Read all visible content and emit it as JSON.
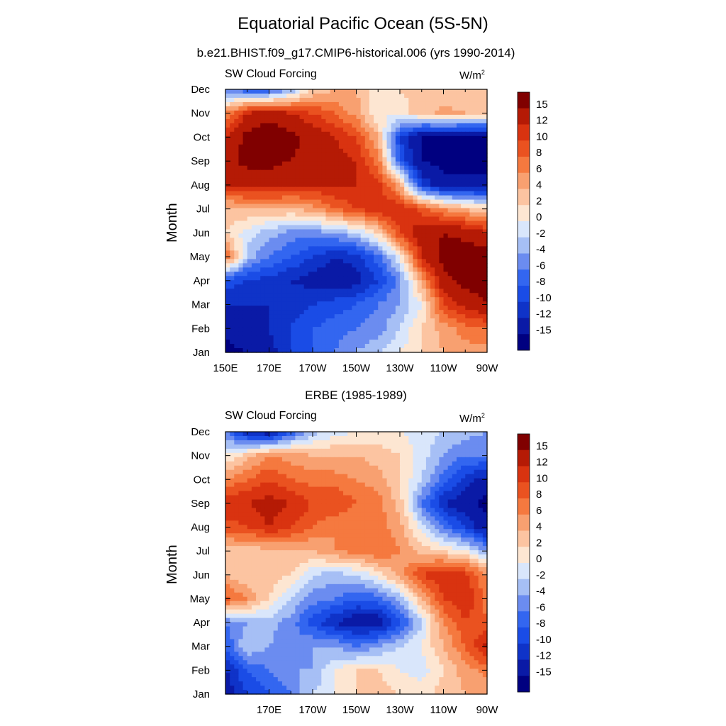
{
  "title": "Equatorial Pacific Ocean (5S-5N)",
  "chart_data": [
    {
      "type": "heatmap",
      "panel_title": "b.e21.BHIST.f09_g17.CMIP6-historical.006 (yrs 1990-2014)",
      "left_label": "SW Cloud Forcing",
      "units_base": "W/m",
      "units_exp": "2",
      "ylabel": "Month",
      "xticks": [
        "150E",
        "170E",
        "170W",
        "150W",
        "130W",
        "110W",
        "90W"
      ],
      "yticks": [
        "Jan",
        "Feb",
        "Mar",
        "Apr",
        "May",
        "Jun",
        "Jul",
        "Aug",
        "Sep",
        "Oct",
        "Nov",
        "Dec"
      ],
      "xlim": [
        150,
        270
      ],
      "lon_cols": [
        150,
        160,
        170,
        180,
        190,
        200,
        210,
        220,
        230,
        240,
        250,
        260,
        270
      ],
      "z": [
        [
          -16,
          -15,
          -13,
          -10,
          -8,
          -6,
          -4,
          -2,
          0,
          2,
          4,
          5,
          5
        ],
        [
          -14,
          -13,
          -12,
          -10,
          -8,
          -7,
          -6,
          -5,
          -2,
          2,
          5,
          7,
          8
        ],
        [
          -12,
          -12,
          -12,
          -11,
          -10,
          -9,
          -8,
          -6,
          -4,
          0,
          10,
          13,
          15
        ],
        [
          -9,
          -10,
          -11,
          -12,
          -13,
          -14,
          -13,
          -10,
          -5,
          5,
          14,
          16,
          17
        ],
        [
          8,
          -3,
          -6,
          -8,
          -10,
          -12,
          -11,
          -7,
          0,
          12,
          16,
          17,
          17
        ],
        [
          2,
          -1,
          -3,
          -5,
          -5,
          -4,
          -2,
          2,
          10,
          14,
          15,
          14,
          12
        ],
        [
          3,
          4,
          4,
          4,
          5,
          8,
          10,
          12,
          12,
          9,
          6,
          4,
          2
        ],
        [
          12,
          13,
          13,
          12,
          12,
          12,
          12,
          11,
          4,
          -10,
          -14,
          -14,
          -14
        ],
        [
          14,
          16,
          16,
          15,
          14,
          13,
          12,
          7,
          -8,
          -15,
          -16,
          -16,
          -16
        ],
        [
          12,
          16,
          17,
          16,
          14,
          12,
          10,
          4,
          -10,
          -15,
          -16,
          -16,
          -15
        ],
        [
          6,
          12,
          14,
          12,
          10,
          8,
          5,
          0,
          1,
          3,
          5,
          4,
          3
        ],
        [
          -6,
          -8,
          -8,
          -4,
          2,
          4,
          4,
          1,
          2,
          3,
          2,
          2,
          2
        ]
      ]
    },
    {
      "type": "heatmap",
      "panel_title": "ERBE (1985-1989)",
      "left_label": "SW Cloud Forcing",
      "units_base": "W/m",
      "units_exp": "2",
      "ylabel": "Month",
      "xticks": [
        "170E",
        "170W",
        "150W",
        "130W",
        "110W",
        "90W"
      ],
      "yticks": [
        "Jan",
        "Feb",
        "Mar",
        "Apr",
        "May",
        "Jun",
        "Jul",
        "Aug",
        "Sep",
        "Oct",
        "Nov",
        "Dec"
      ],
      "xlim": [
        150,
        270
      ],
      "lon_cols": [
        150,
        160,
        170,
        180,
        190,
        200,
        210,
        220,
        230,
        240,
        250,
        260,
        270
      ],
      "z": [
        [
          -14,
          -10,
          -8,
          -6,
          -2,
          0,
          2,
          3,
          2,
          1,
          3,
          4,
          4
        ],
        [
          -12,
          -8,
          -6,
          -4,
          -4,
          0,
          2,
          2,
          0,
          -1,
          2,
          5,
          7
        ],
        [
          -8,
          -2,
          -4,
          -6,
          -4,
          -4,
          -6,
          -4,
          -2,
          0,
          4,
          8,
          13
        ],
        [
          -6,
          -4,
          -3,
          -5,
          -9,
          -12,
          -14,
          -14,
          -9,
          -2,
          6,
          10,
          8
        ],
        [
          9,
          6,
          2,
          -2,
          -5,
          -6,
          -8,
          -7,
          -3,
          4,
          10,
          12,
          7
        ],
        [
          4,
          2,
          3,
          2,
          -2,
          -3,
          -2,
          1,
          5,
          10,
          12,
          11,
          6
        ],
        [
          3,
          3,
          3,
          4,
          4,
          6,
          7,
          8,
          6,
          3,
          2,
          0,
          -4
        ],
        [
          9,
          10,
          12,
          10,
          8,
          6,
          6,
          7,
          5,
          -1,
          -6,
          -10,
          -14
        ],
        [
          12,
          12,
          13,
          12,
          10,
          10,
          8,
          7,
          3,
          -6,
          -12,
          -14,
          -16
        ],
        [
          6,
          8,
          10,
          8,
          7,
          7,
          6,
          5,
          2,
          -2,
          -7,
          -11,
          -13
        ],
        [
          0,
          3,
          6,
          5,
          4,
          4,
          4,
          3,
          2,
          -1,
          -4,
          -6,
          -6
        ],
        [
          -6,
          -12,
          -14,
          -8,
          -3,
          -1,
          0,
          1,
          0,
          -1,
          -2,
          -3,
          -4
        ]
      ]
    }
  ],
  "colorbar": {
    "labels": [
      "15",
      "12",
      "10",
      "8",
      "6",
      "4",
      "2",
      "0",
      "-2",
      "-4",
      "-6",
      "-8",
      "-10",
      "-12",
      "-15"
    ],
    "levels": [
      -15,
      -12,
      -10,
      -8,
      -6,
      -4,
      -2,
      0,
      2,
      4,
      6,
      8,
      10,
      12,
      15
    ],
    "colors": [
      "#000080",
      "#0a1aa6",
      "#0f33c8",
      "#1a4ce6",
      "#3366f0",
      "#6b8cf0",
      "#a6bff5",
      "#d9e6fb",
      "#fde6d2",
      "#fcc4a1",
      "#f8a070",
      "#f5793f",
      "#ea5220",
      "#d93310",
      "#b51a05",
      "#800000"
    ]
  }
}
